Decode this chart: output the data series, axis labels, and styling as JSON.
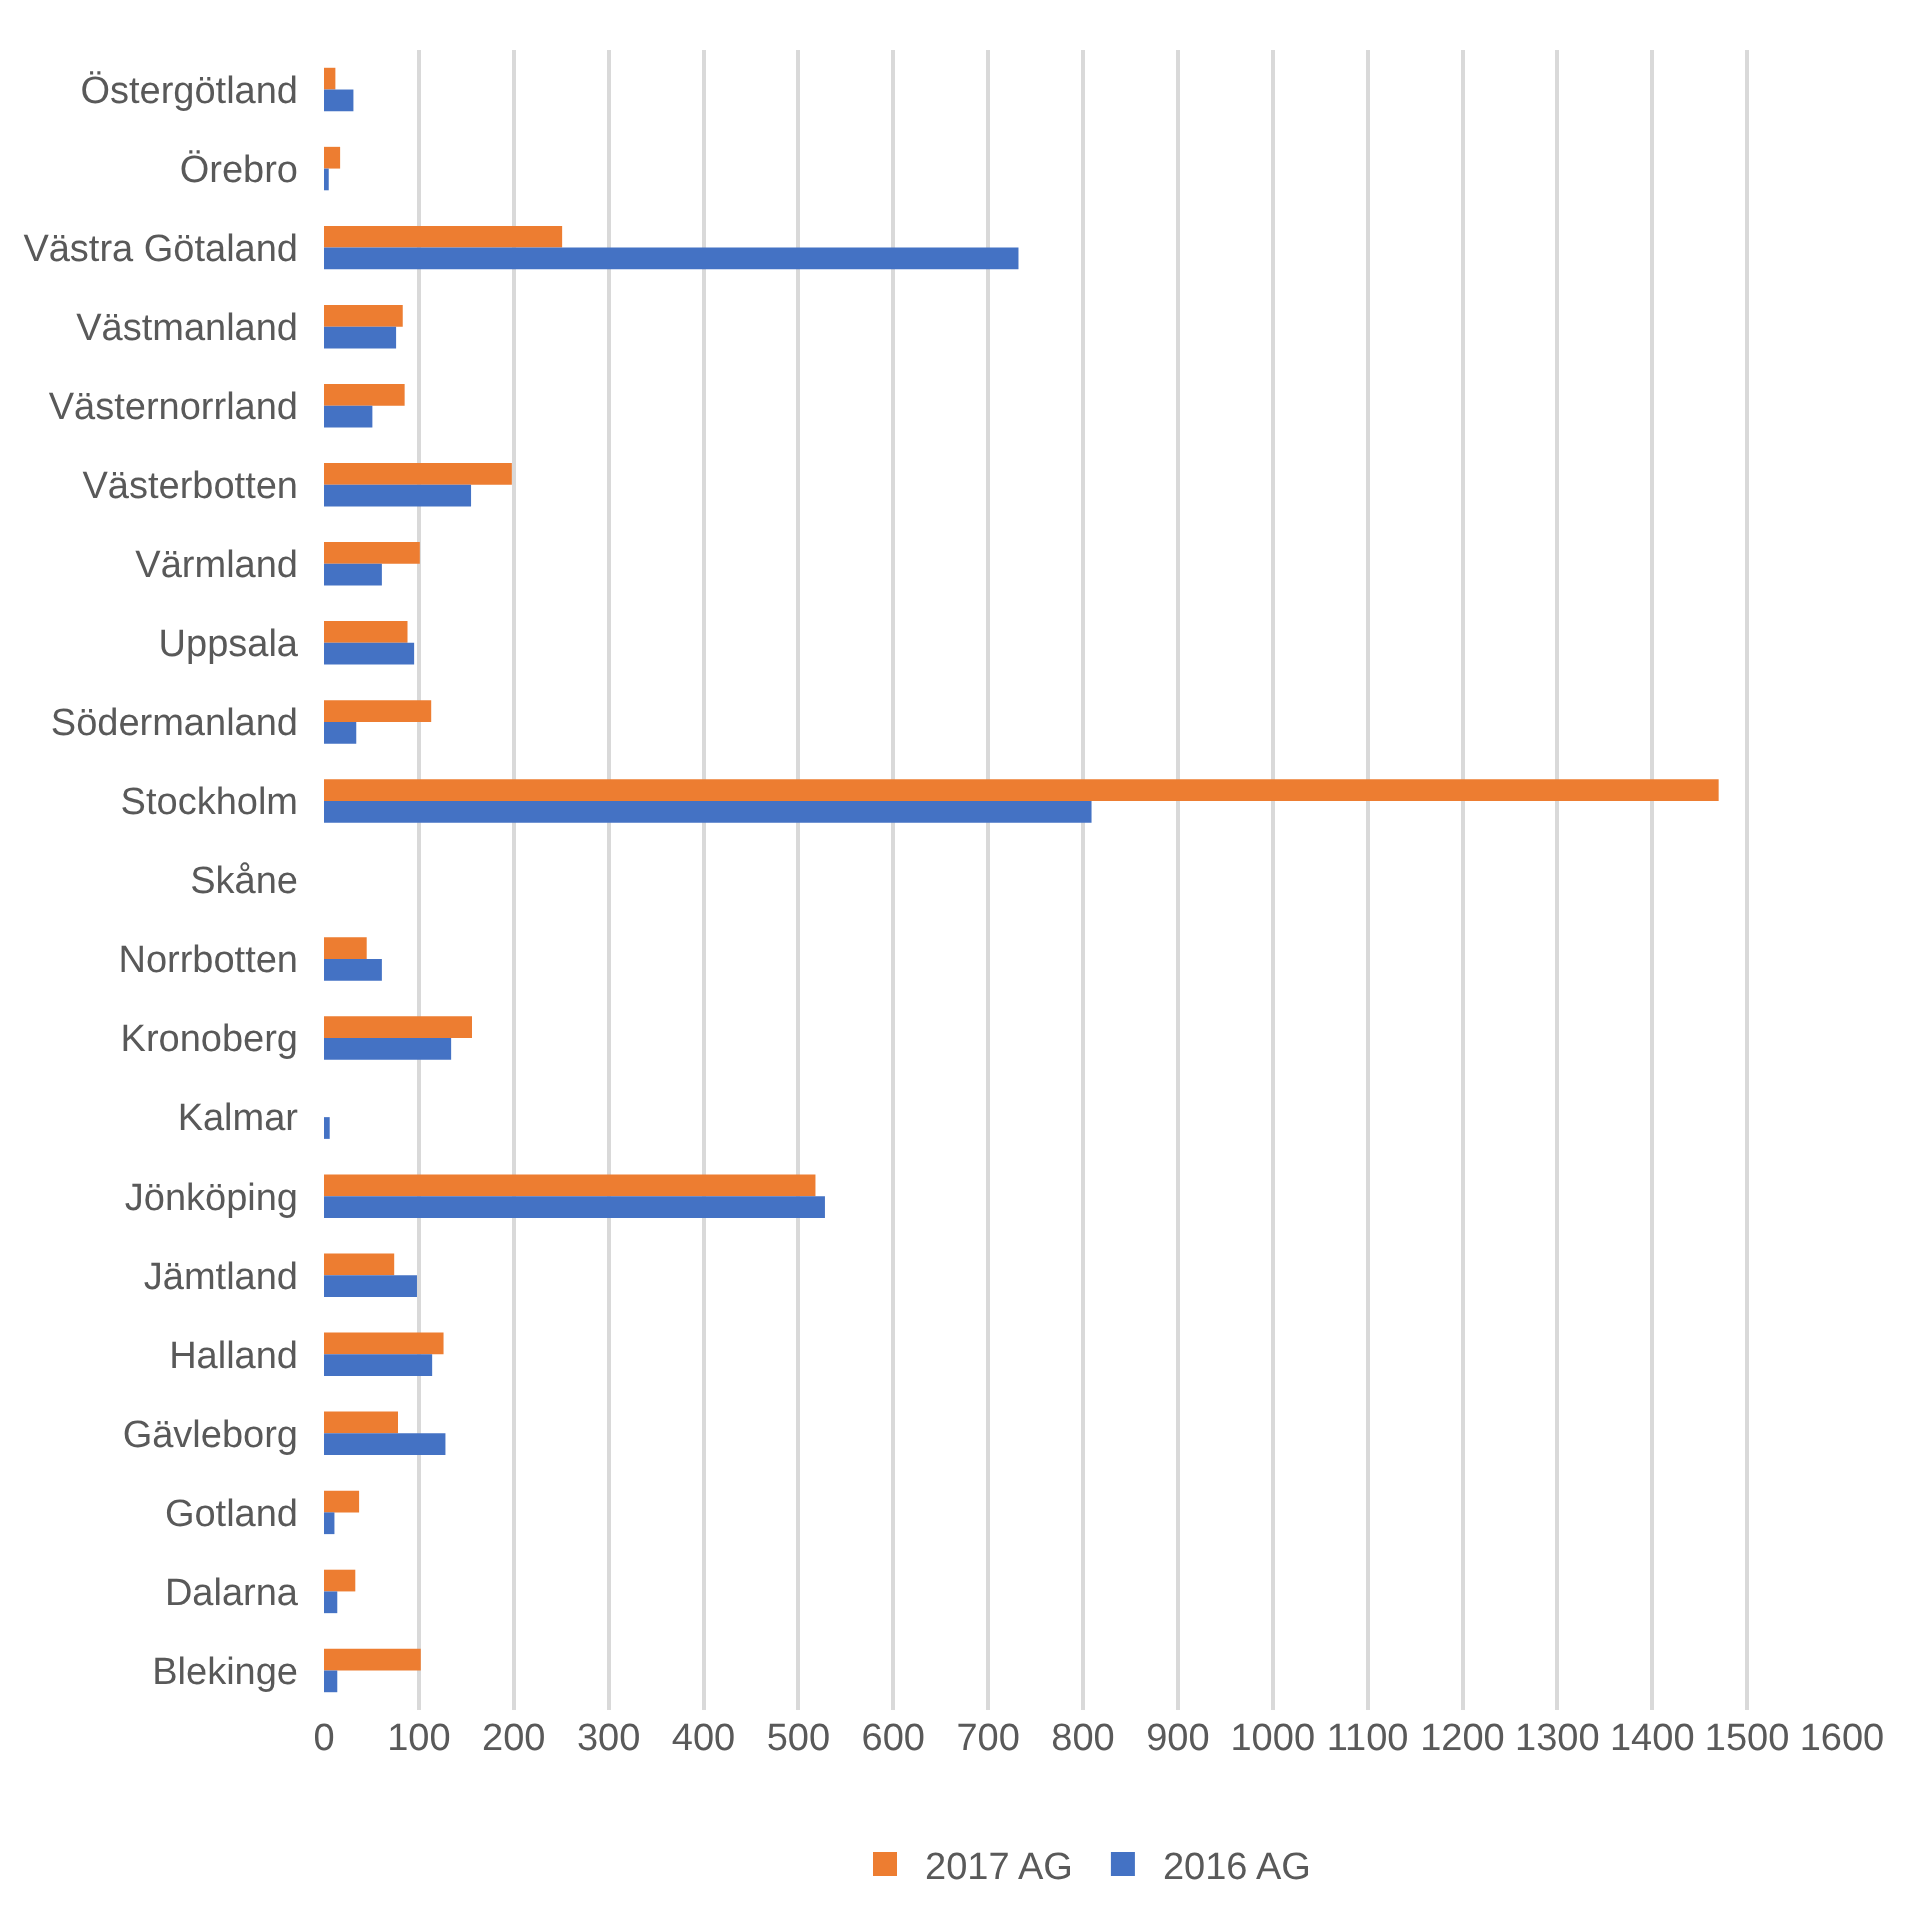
{
  "chart_data": {
    "type": "bar",
    "orientation": "horizontal",
    "categories": [
      "Östergötland",
      "Örebro",
      "Västra Götaland",
      "Västmanland",
      "Västernorrland",
      "Västerbotten",
      "Värmland",
      "Uppsala",
      "Södermanland",
      "Stockholm",
      "Skåne",
      "Norrbotten",
      "Kronoberg",
      "Kalmar",
      "Jönköping",
      "Jämtland",
      "Halland",
      "Gävleborg",
      "Gotland",
      "Dalarna",
      "Blekinge"
    ],
    "series": [
      {
        "name": "2017 AG",
        "color": "#ed7d31",
        "values": [
          12,
          17,
          251,
          83,
          85,
          198,
          101,
          88,
          113,
          1470,
          null,
          45,
          156,
          null,
          518,
          74,
          126,
          78,
          37,
          33,
          102
        ]
      },
      {
        "name": "2016 AG",
        "color": "#4472c4",
        "values": [
          31,
          5,
          732,
          76,
          51,
          155,
          61,
          95,
          34,
          809,
          null,
          61,
          134,
          6,
          528,
          98,
          114,
          128,
          11,
          14,
          14
        ]
      }
    ],
    "xlim": [
      0,
      1600
    ],
    "xticks": [
      0,
      100,
      200,
      300,
      400,
      500,
      600,
      700,
      800,
      900,
      1000,
      1100,
      1200,
      1300,
      1400,
      1500,
      1600
    ],
    "grid": "x",
    "legend": "bottom"
  }
}
